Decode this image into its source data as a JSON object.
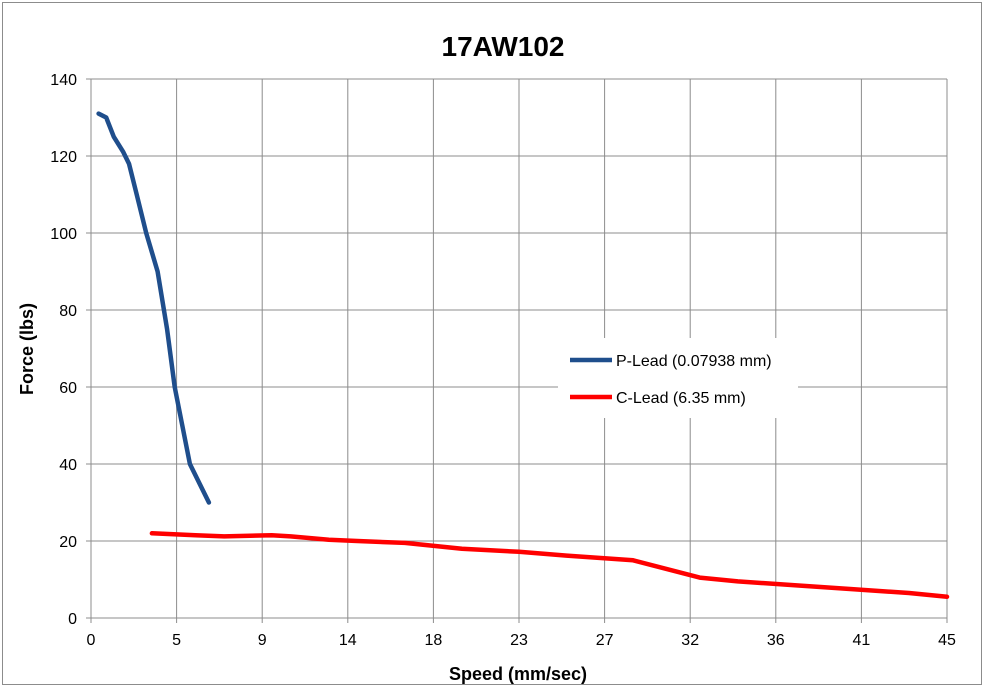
{
  "chart_data": {
    "type": "line",
    "title": "17AW102",
    "xlabel": "Speed (mm/sec)",
    "ylabel": "Force (lbs)",
    "x_tick_labels": [
      "0",
      "5",
      "9",
      "14",
      "18",
      "23",
      "27",
      "32",
      "36",
      "41",
      "45"
    ],
    "y_tick_labels": [
      "0",
      "20",
      "40",
      "60",
      "80",
      "100",
      "120",
      "140"
    ],
    "xlim": [
      0,
      45
    ],
    "ylim": [
      0,
      140
    ],
    "grid": true,
    "legend_position": "right",
    "series": [
      {
        "name": "P-Lead (0.07938 mm)",
        "color": "#1f4e8c",
        "x": [
          0.4,
          0.8,
          1.2,
          1.7,
          2.0,
          2.4,
          2.9,
          3.5,
          4.0,
          4.4,
          4.8,
          5.2,
          5.8,
          6.2
        ],
        "y": [
          131,
          130,
          125,
          121,
          118,
          110,
          100,
          90,
          75,
          60,
          50,
          40,
          34,
          30
        ]
      },
      {
        "name": "C-Lead (6.35 mm)",
        "color": "#ff0000",
        "x": [
          3.2,
          5.5,
          7.0,
          9.5,
          10.5,
          12.5,
          14.0,
          16.5,
          19.5,
          22.5,
          25.0,
          28.5,
          32.0,
          34.0,
          37.0,
          40.0,
          43.0,
          45.0
        ],
        "y": [
          22,
          21.5,
          21.2,
          21.5,
          21.2,
          20.3,
          20.0,
          19.5,
          18.0,
          17.2,
          16.2,
          15.0,
          10.5,
          9.5,
          8.5,
          7.5,
          6.5,
          5.5
        ]
      }
    ]
  }
}
